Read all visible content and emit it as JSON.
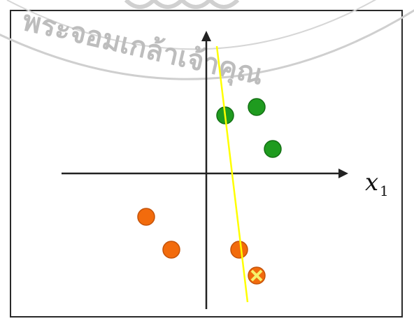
{
  "watermark": {
    "text": "พระจอมเกล้าเจ้าคุณ",
    "color": "#bdbdbd"
  },
  "axes": {
    "x_label_main": "x",
    "x_label_sub": "1",
    "color": "#222222"
  },
  "points": {
    "green": {
      "color": "#1f9b1f",
      "count": 3
    },
    "orange": {
      "color": "#f26b0c",
      "count": 3
    },
    "misclassified": {
      "color": "#f26b0c",
      "mark_color": "#f5f26a"
    }
  },
  "decision_line": {
    "color": "#ffff00"
  }
}
